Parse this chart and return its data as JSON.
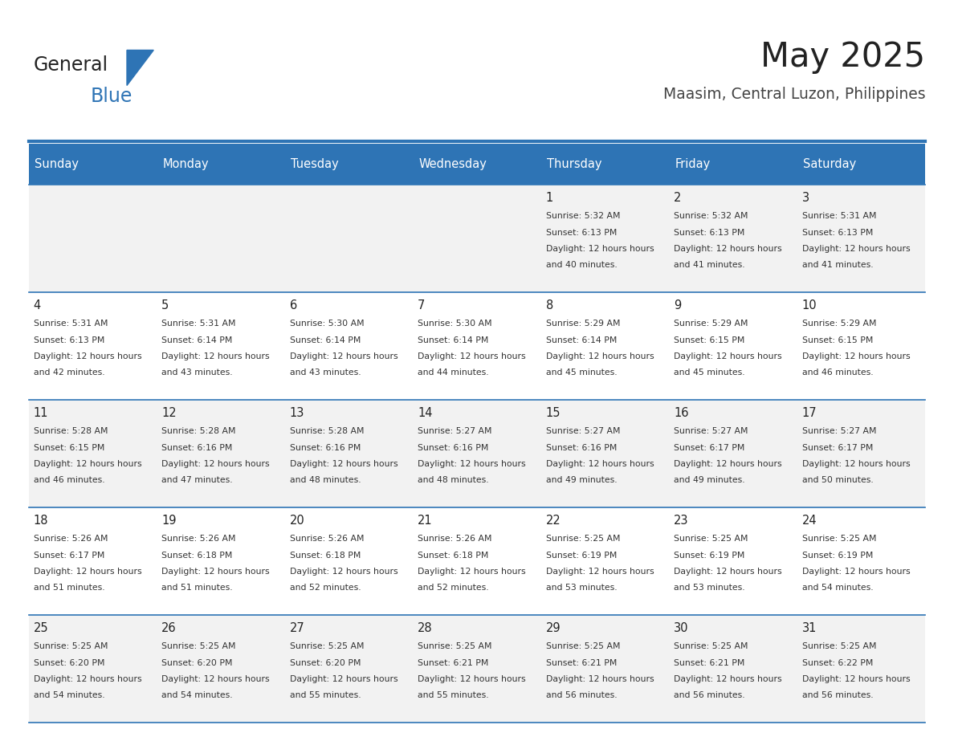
{
  "title": "May 2025",
  "subtitle": "Maasim, Central Luzon, Philippines",
  "header_bg": "#2E74B5",
  "header_text": "#FFFFFF",
  "header_days": [
    "Sunday",
    "Monday",
    "Tuesday",
    "Wednesday",
    "Thursday",
    "Friday",
    "Saturday"
  ],
  "alt_row_bg": "#F2F2F2",
  "white_bg": "#FFFFFF",
  "cell_text_color": "#333333",
  "day_num_color": "#222222",
  "grid_line_color": "#2E74B5",
  "logo_general_color": "#222222",
  "logo_blue_color": "#2E74B5",
  "title_color": "#222222",
  "subtitle_color": "#444444",
  "calendar_data": [
    [
      null,
      null,
      null,
      null,
      {
        "day": 1,
        "sunrise": "5:32 AM",
        "sunset": "6:13 PM",
        "daylight": "12 hours and 40 minutes"
      },
      {
        "day": 2,
        "sunrise": "5:32 AM",
        "sunset": "6:13 PM",
        "daylight": "12 hours and 41 minutes"
      },
      {
        "day": 3,
        "sunrise": "5:31 AM",
        "sunset": "6:13 PM",
        "daylight": "12 hours and 41 minutes"
      }
    ],
    [
      {
        "day": 4,
        "sunrise": "5:31 AM",
        "sunset": "6:13 PM",
        "daylight": "12 hours and 42 minutes"
      },
      {
        "day": 5,
        "sunrise": "5:31 AM",
        "sunset": "6:14 PM",
        "daylight": "12 hours and 43 minutes"
      },
      {
        "day": 6,
        "sunrise": "5:30 AM",
        "sunset": "6:14 PM",
        "daylight": "12 hours and 43 minutes"
      },
      {
        "day": 7,
        "sunrise": "5:30 AM",
        "sunset": "6:14 PM",
        "daylight": "12 hours and 44 minutes"
      },
      {
        "day": 8,
        "sunrise": "5:29 AM",
        "sunset": "6:14 PM",
        "daylight": "12 hours and 45 minutes"
      },
      {
        "day": 9,
        "sunrise": "5:29 AM",
        "sunset": "6:15 PM",
        "daylight": "12 hours and 45 minutes"
      },
      {
        "day": 10,
        "sunrise": "5:29 AM",
        "sunset": "6:15 PM",
        "daylight": "12 hours and 46 minutes"
      }
    ],
    [
      {
        "day": 11,
        "sunrise": "5:28 AM",
        "sunset": "6:15 PM",
        "daylight": "12 hours and 46 minutes"
      },
      {
        "day": 12,
        "sunrise": "5:28 AM",
        "sunset": "6:16 PM",
        "daylight": "12 hours and 47 minutes"
      },
      {
        "day": 13,
        "sunrise": "5:28 AM",
        "sunset": "6:16 PM",
        "daylight": "12 hours and 48 minutes"
      },
      {
        "day": 14,
        "sunrise": "5:27 AM",
        "sunset": "6:16 PM",
        "daylight": "12 hours and 48 minutes"
      },
      {
        "day": 15,
        "sunrise": "5:27 AM",
        "sunset": "6:16 PM",
        "daylight": "12 hours and 49 minutes"
      },
      {
        "day": 16,
        "sunrise": "5:27 AM",
        "sunset": "6:17 PM",
        "daylight": "12 hours and 49 minutes"
      },
      {
        "day": 17,
        "sunrise": "5:27 AM",
        "sunset": "6:17 PM",
        "daylight": "12 hours and 50 minutes"
      }
    ],
    [
      {
        "day": 18,
        "sunrise": "5:26 AM",
        "sunset": "6:17 PM",
        "daylight": "12 hours and 51 minutes"
      },
      {
        "day": 19,
        "sunrise": "5:26 AM",
        "sunset": "6:18 PM",
        "daylight": "12 hours and 51 minutes"
      },
      {
        "day": 20,
        "sunrise": "5:26 AM",
        "sunset": "6:18 PM",
        "daylight": "12 hours and 52 minutes"
      },
      {
        "day": 21,
        "sunrise": "5:26 AM",
        "sunset": "6:18 PM",
        "daylight": "12 hours and 52 minutes"
      },
      {
        "day": 22,
        "sunrise": "5:25 AM",
        "sunset": "6:19 PM",
        "daylight": "12 hours and 53 minutes"
      },
      {
        "day": 23,
        "sunrise": "5:25 AM",
        "sunset": "6:19 PM",
        "daylight": "12 hours and 53 minutes"
      },
      {
        "day": 24,
        "sunrise": "5:25 AM",
        "sunset": "6:19 PM",
        "daylight": "12 hours and 54 minutes"
      }
    ],
    [
      {
        "day": 25,
        "sunrise": "5:25 AM",
        "sunset": "6:20 PM",
        "daylight": "12 hours and 54 minutes"
      },
      {
        "day": 26,
        "sunrise": "5:25 AM",
        "sunset": "6:20 PM",
        "daylight": "12 hours and 54 minutes"
      },
      {
        "day": 27,
        "sunrise": "5:25 AM",
        "sunset": "6:20 PM",
        "daylight": "12 hours and 55 minutes"
      },
      {
        "day": 28,
        "sunrise": "5:25 AM",
        "sunset": "6:21 PM",
        "daylight": "12 hours and 55 minutes"
      },
      {
        "day": 29,
        "sunrise": "5:25 AM",
        "sunset": "6:21 PM",
        "daylight": "12 hours and 56 minutes"
      },
      {
        "day": 30,
        "sunrise": "5:25 AM",
        "sunset": "6:21 PM",
        "daylight": "12 hours and 56 minutes"
      },
      {
        "day": 31,
        "sunrise": "5:25 AM",
        "sunset": "6:22 PM",
        "daylight": "12 hours and 56 minutes"
      }
    ]
  ]
}
